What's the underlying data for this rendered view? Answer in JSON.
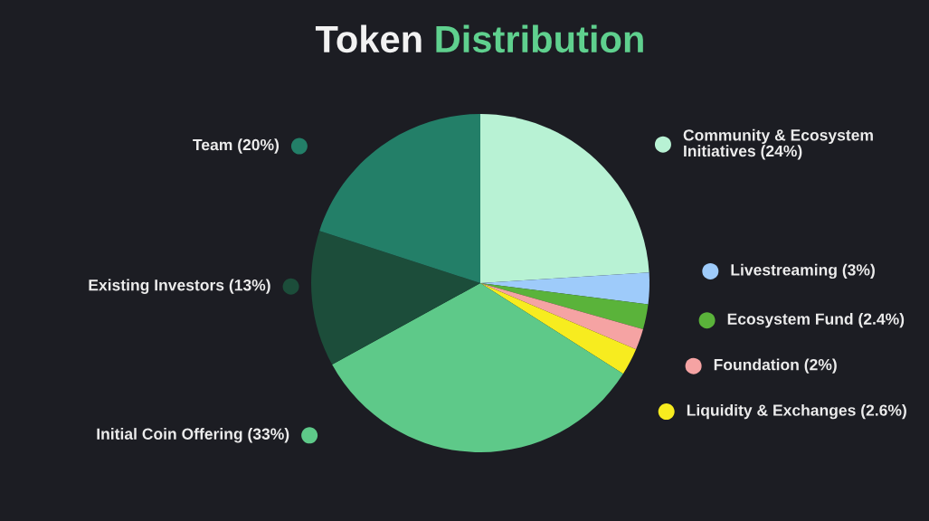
{
  "chart_data": {
    "type": "pie",
    "title": "Token Distribution",
    "categories": [
      "Community & Ecosystem Initiatives (24%)",
      "Livestreaming (3%)",
      "Ecosystem Fund (2.4%)",
      "Foundation (2%)",
      "Liquidity & Exchanges (2.6%)",
      "Initial Coin Offering (33%)",
      "Existing Investors (13%)",
      "Team (20%)"
    ],
    "values": [
      24,
      3,
      2.4,
      2,
      2.6,
      33,
      13,
      20
    ],
    "colors": [
      "#b8f2d4",
      "#9ecbfa",
      "#5ab33a",
      "#f5a3a3",
      "#f7ec1f",
      "#5ec989",
      "#1c4d3a",
      "#237f68"
    ],
    "legend": "right"
  }
}
